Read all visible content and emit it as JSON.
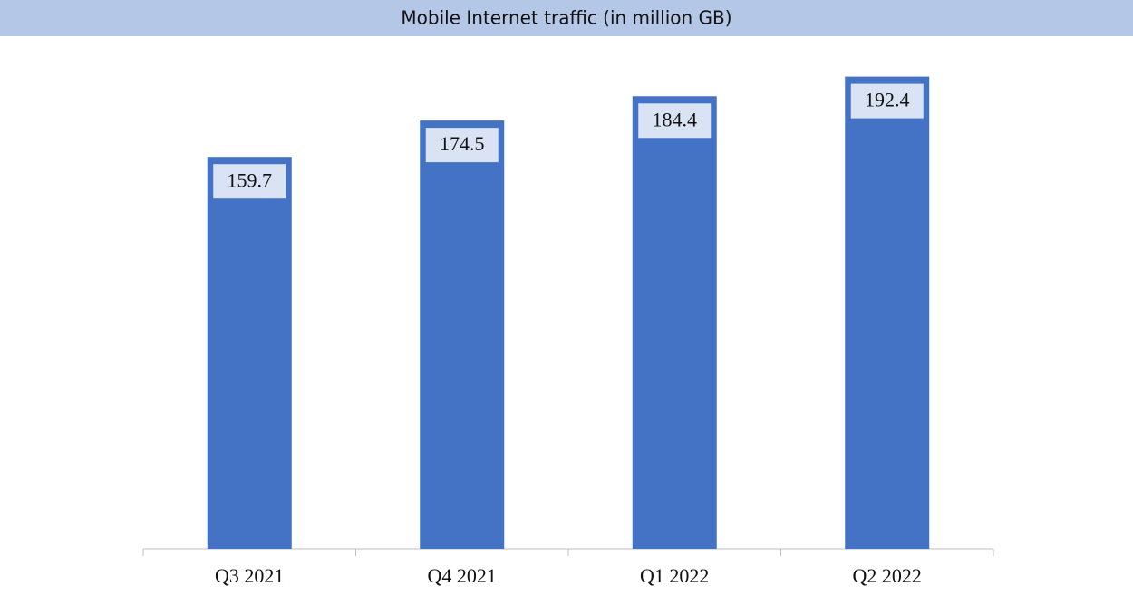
{
  "chart_data": {
    "type": "bar",
    "title": "Mobile Internet traffic (in million GB)",
    "categories": [
      "Q3 2021",
      "Q4 2021",
      "Q1 2022",
      "Q2 2022"
    ],
    "values": [
      159.7,
      174.5,
      184.4,
      192.4
    ],
    "color": "#4472c4",
    "ylim": [
      0,
      200
    ]
  }
}
